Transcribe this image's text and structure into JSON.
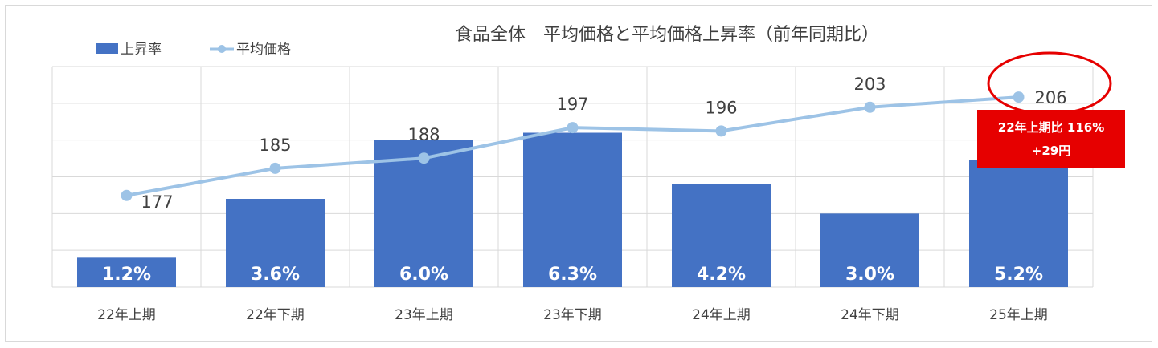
{
  "chart_data": {
    "type": "bar+line",
    "title": "食品全体　平均価格と平均価格上昇率（前年同期比）",
    "categories": [
      "22年上期",
      "22年下期",
      "23年上期",
      "23年下期",
      "24年上期",
      "24年下期",
      "25年上期"
    ],
    "series": [
      {
        "name": "上昇率",
        "type": "bar",
        "color": "#4472c4",
        "values": [
          1.2,
          3.6,
          6.0,
          6.3,
          4.2,
          3.0,
          5.2
        ],
        "labels": [
          "1.2%",
          "3.6%",
          "6.0%",
          "6.3%",
          "4.2%",
          "3.0%",
          "5.2%"
        ]
      },
      {
        "name": "平均価格",
        "type": "line",
        "color": "#9dc3e6",
        "values": [
          177,
          185,
          188,
          197,
          196,
          203,
          206
        ],
        "labels": [
          "177",
          "185",
          "188",
          "197",
          "196",
          "203",
          "206"
        ]
      }
    ],
    "legend_position": "top-left",
    "grid": true,
    "annotation": {
      "line1": "22年上期比 116%",
      "line2": "+29円",
      "color": "#e60000",
      "highlight_category": "25年上期"
    }
  }
}
